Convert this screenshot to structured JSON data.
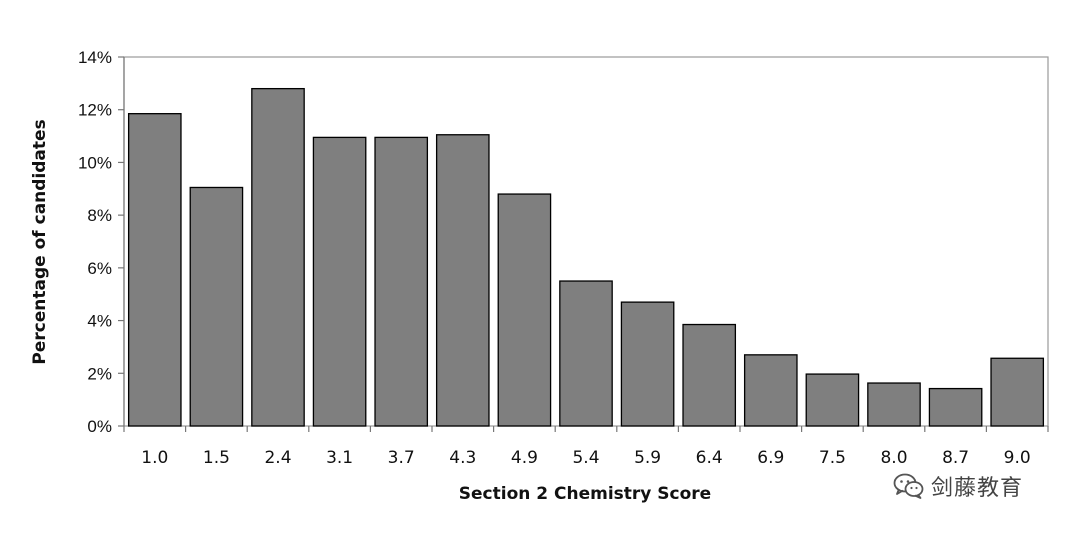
{
  "chart_data": {
    "type": "bar",
    "title": "",
    "xlabel": "Section 2 Chemistry Score",
    "ylabel": "Percentage of candidates",
    "categories": [
      "1.0",
      "1.5",
      "2.4",
      "3.1",
      "3.7",
      "4.3",
      "4.9",
      "5.4",
      "5.9",
      "6.4",
      "6.9",
      "7.5",
      "8.0",
      "8.7",
      "9.0"
    ],
    "values": [
      11.85,
      9.05,
      12.8,
      10.95,
      10.95,
      11.05,
      8.8,
      5.5,
      4.7,
      3.85,
      2.7,
      1.97,
      1.63,
      1.42,
      2.57
    ],
    "yticks": [
      "0%",
      "2%",
      "4%",
      "6%",
      "8%",
      "10%",
      "12%",
      "14%"
    ],
    "ylim": [
      0,
      14
    ],
    "bar_color": "#7f7f7f",
    "bar_edge_color": "#000000",
    "grid": false
  },
  "watermark": {
    "icon": "wechat-icon",
    "text": "剑藤教育"
  }
}
